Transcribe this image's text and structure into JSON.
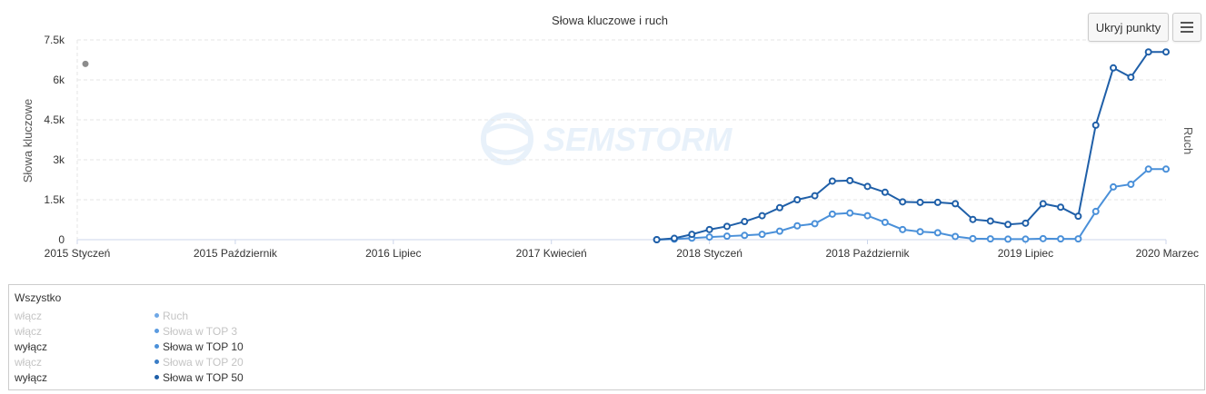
{
  "chart_data": {
    "type": "line",
    "title": "Słowa kluczowe i ruch",
    "ylabel": "Słowa kluczowe",
    "y2label": "Ruch",
    "ylim": [
      0,
      7500
    ],
    "yticks": [
      0,
      1500,
      3000,
      4500,
      6000,
      7500
    ],
    "ytick_labels": [
      "0",
      "1.5k",
      "3k",
      "4.5k",
      "6k",
      "7.5k"
    ],
    "x_start": "2015-01",
    "x_end": "2020-03",
    "xtick_labels": [
      "2015 Styczeń",
      "2015 Październik",
      "2016 Lipiec",
      "2017 Kwiecień",
      "2018 Styczeń",
      "2018 Październik",
      "2019 Lipiec",
      "2020 Marzec"
    ],
    "xtick_months": [
      "2015-01",
      "2015-10",
      "2016-07",
      "2017-04",
      "2018-01",
      "2018-10",
      "2019-07",
      "2020-03"
    ],
    "grid": true,
    "standalone_points": [
      {
        "x": "2015-01",
        "y": 6600,
        "color": "#8c8c8c"
      }
    ],
    "x": [
      "2017-10",
      "2017-11",
      "2017-12",
      "2018-01",
      "2018-02",
      "2018-03",
      "2018-04",
      "2018-05",
      "2018-06",
      "2018-07",
      "2018-08",
      "2018-09",
      "2018-10",
      "2018-11",
      "2018-12",
      "2019-01",
      "2019-02",
      "2019-03",
      "2019-04",
      "2019-05",
      "2019-06",
      "2019-07",
      "2019-08",
      "2019-09",
      "2019-10",
      "2019-11",
      "2019-12",
      "2020-01",
      "2020-02",
      "2020-03"
    ],
    "series": [
      {
        "name": "Słowa w TOP 50",
        "color": "#1f5fa8",
        "values": [
          0,
          50,
          200,
          380,
          500,
          680,
          900,
          1200,
          1500,
          1650,
          2200,
          2220,
          2000,
          1780,
          1420,
          1400,
          1400,
          1350,
          760,
          700,
          570,
          620,
          1350,
          1220,
          880,
          4300,
          6450,
          6100,
          7050,
          7050
        ]
      },
      {
        "name": "Słowa w TOP 10",
        "color": "#4a90d9",
        "values": [
          0,
          20,
          60,
          100,
          130,
          160,
          200,
          320,
          520,
          600,
          960,
          1000,
          900,
          650,
          380,
          300,
          260,
          120,
          40,
          30,
          20,
          20,
          40,
          30,
          30,
          1060,
          1980,
          2080,
          2650,
          2650
        ]
      }
    ]
  },
  "buttons": {
    "hide_points": "Ukryj punkty",
    "menu_icon": "hamburger-menu-icon"
  },
  "watermark": "SEMSTORM",
  "legend": {
    "title": "Wszystko",
    "rows": [
      {
        "toggle": "włącz",
        "label": "Ruch",
        "active": false,
        "color": "#6fa8e6"
      },
      {
        "toggle": "włącz",
        "label": "Słowa w TOP 3",
        "active": false,
        "color": "#5b9be0"
      },
      {
        "toggle": "wyłącz",
        "label": "Słowa w TOP 10",
        "active": true,
        "color": "#4a90d9"
      },
      {
        "toggle": "włącz",
        "label": "Słowa w TOP 20",
        "active": false,
        "color": "#3a7dc6"
      },
      {
        "toggle": "wyłącz",
        "label": "Słowa w TOP 50",
        "active": true,
        "color": "#1f5fa8"
      }
    ]
  }
}
